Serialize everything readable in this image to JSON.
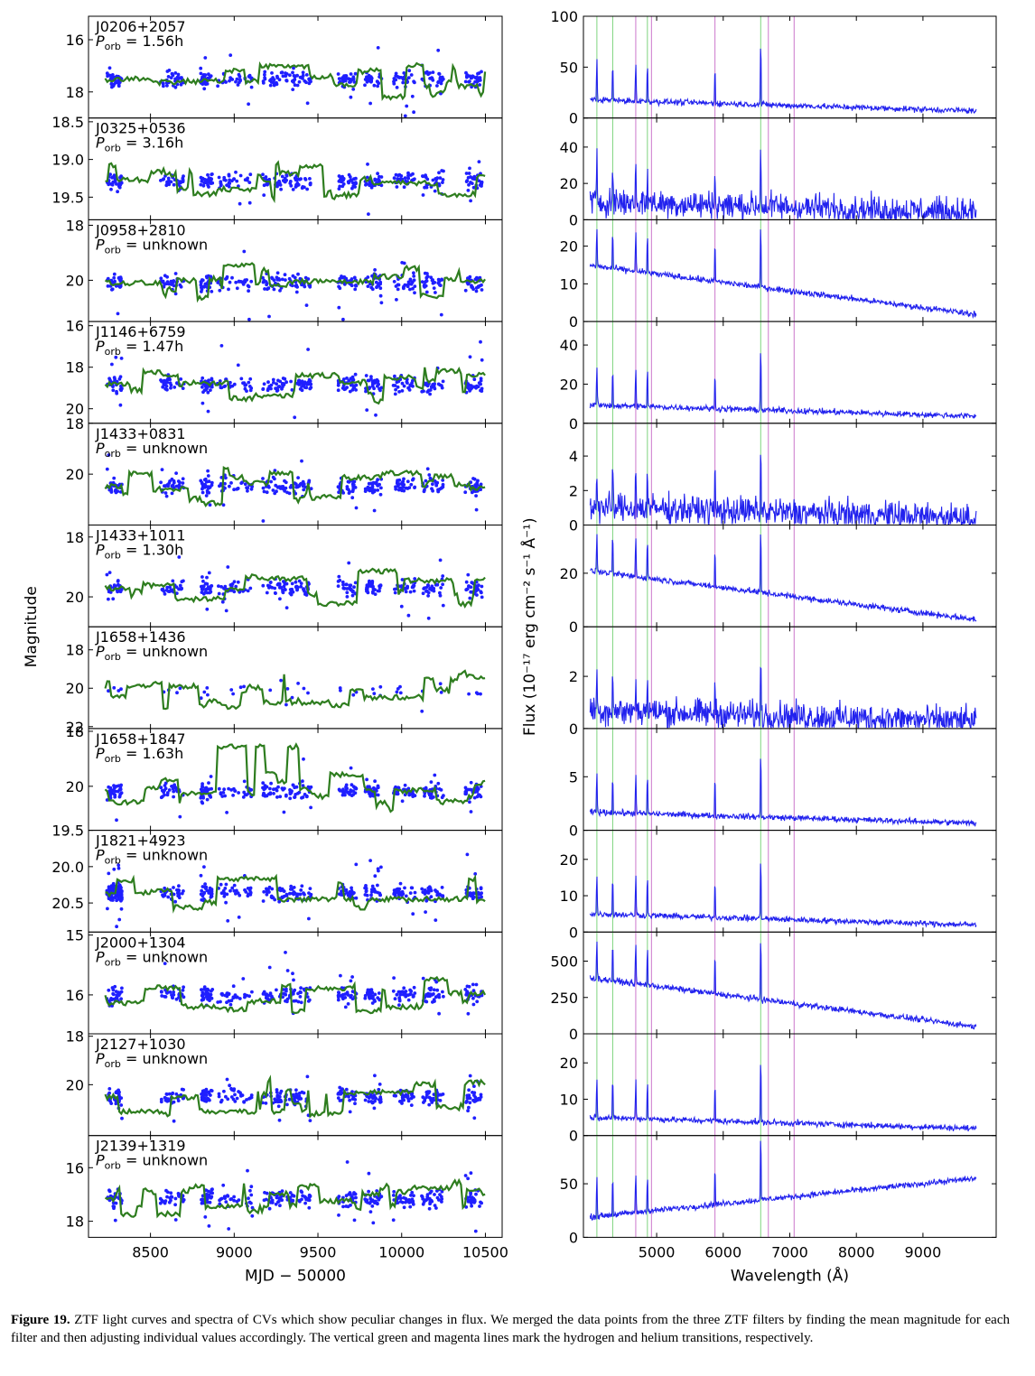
{
  "figure": {
    "left_ylabel": "Magnitude",
    "left_xlabel": "MJD − 50000",
    "right_ylabel": "Flux (10⁻¹⁷ erg cm⁻² s⁻¹ Å⁻¹)",
    "right_xlabel": "Wavelength (Å)"
  },
  "caption": {
    "label": "Figure 19.",
    "text": "ZTF light curves and spectra of CVs which show peculiar changes in flux. We merged the data points from the three ZTF filters by finding the mean magnitude for each filter and then adjusting individual values accordingly. The vertical green and magenta lines mark the hydrogen and helium transitions, respectively."
  },
  "colors": {
    "points": "#1f1fff",
    "model": "#2e7d1f",
    "spectrum": "#2222ee",
    "hydrogen": "#7fd47f",
    "helium": "#cc77cc"
  },
  "chart_data": [
    {
      "type": "scatter",
      "panel": "light-curves",
      "x_ticks": [
        8500,
        9000,
        9500,
        10000,
        10500
      ],
      "xlim": [
        8130,
        10600
      ],
      "y_inverted": true,
      "objects": [
        {
          "name": "J0206+2057",
          "porb": "1.56h",
          "yticks": [
            16,
            18
          ],
          "ylim": [
            15.1,
            19.0
          ]
        },
        {
          "name": "J0325+0536",
          "porb": "3.16h",
          "yticks": [
            "18.5",
            "19.0",
            "19.5"
          ],
          "ylim": [
            18.45,
            19.8
          ]
        },
        {
          "name": "J0958+2810",
          "porb": "unknown",
          "yticks": [
            18,
            20
          ],
          "ylim": [
            17.8,
            21.5
          ]
        },
        {
          "name": "J1146+6759",
          "porb": "1.47h",
          "yticks": [
            16,
            18,
            20
          ],
          "ylim": [
            15.8,
            20.7
          ]
        },
        {
          "name": "J1433+0831",
          "porb": "unknown",
          "yticks": [
            18,
            20
          ],
          "ylim": [
            18.0,
            22.0
          ]
        },
        {
          "name": "J1433+1011",
          "porb": "1.30h",
          "yticks": [
            18,
            20
          ],
          "ylim": [
            17.6,
            21.0
          ]
        },
        {
          "name": "J1658+1436",
          "porb": "unknown",
          "yticks": [
            18,
            20,
            22
          ],
          "ylim": [
            16.8,
            22.1
          ]
        },
        {
          "name": "J1658+1847",
          "porb": "1.63h",
          "yticks": [
            18,
            20
          ],
          "ylim": [
            17.9,
            21.6
          ]
        },
        {
          "name": "J1821+4923",
          "porb": "unknown",
          "yticks": [
            "19.5",
            "20.0",
            "20.5"
          ],
          "ylim": [
            19.5,
            20.9
          ]
        },
        {
          "name": "J2000+1304",
          "porb": "unknown",
          "yticks": [
            15,
            16
          ],
          "ylim": [
            14.95,
            16.65
          ]
        },
        {
          "name": "J2127+1030",
          "porb": "unknown",
          "yticks": [
            18,
            20
          ],
          "ylim": [
            17.9,
            22.1
          ]
        },
        {
          "name": "J2139+1319",
          "porb": "unknown",
          "yticks": [
            16,
            18
          ],
          "ylim": [
            14.8,
            18.6
          ]
        }
      ]
    },
    {
      "type": "line",
      "panel": "spectra",
      "x_ticks": [
        5000,
        6000,
        7000,
        8000,
        9000
      ],
      "xlim": [
        3900,
        10100
      ],
      "hydrogen_lines": [
        4102,
        4340,
        4861,
        6563
      ],
      "helium_lines": [
        4686,
        4922,
        5876,
        6678,
        7065
      ],
      "objects": [
        {
          "name": "J0206+2057",
          "yticks": [
            0,
            50,
            100
          ],
          "ylim": [
            0,
            100
          ]
        },
        {
          "name": "J0325+0536",
          "yticks": [
            0,
            20,
            40
          ],
          "ylim": [
            0,
            56
          ]
        },
        {
          "name": "J0958+2810",
          "yticks": [
            0,
            10,
            20
          ],
          "ylim": [
            0,
            27
          ]
        },
        {
          "name": "J1146+6759",
          "yticks": [
            0,
            20,
            40
          ],
          "ylim": [
            0,
            52
          ]
        },
        {
          "name": "J1433+0831",
          "yticks": [
            0,
            2,
            4
          ],
          "ylim": [
            0,
            5.9
          ]
        },
        {
          "name": "J1433+1011",
          "yticks": [
            0,
            20
          ],
          "ylim": [
            0,
            38
          ]
        },
        {
          "name": "J1658+1436",
          "yticks": [
            0,
            2
          ],
          "ylim": [
            0,
            3.9
          ]
        },
        {
          "name": "J1658+1847",
          "yticks": [
            0,
            5
          ],
          "ylim": [
            0,
            9.5
          ]
        },
        {
          "name": "J1821+4923",
          "yticks": [
            0,
            10,
            20
          ],
          "ylim": [
            0,
            28
          ]
        },
        {
          "name": "J2000+1304",
          "yticks": [
            0,
            250,
            500
          ],
          "ylim": [
            0,
            700
          ]
        },
        {
          "name": "J2127+1030",
          "yticks": [
            0,
            10,
            20
          ],
          "ylim": [
            0,
            28
          ]
        },
        {
          "name": "J2139+1319",
          "yticks": [
            0,
            50
          ],
          "ylim": [
            0,
            95
          ]
        }
      ]
    }
  ]
}
